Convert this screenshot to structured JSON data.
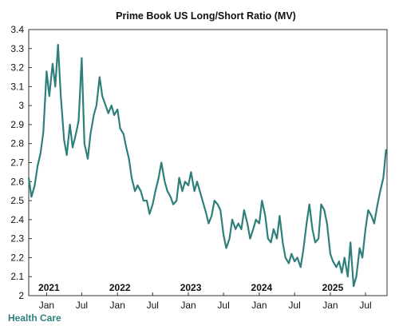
{
  "chart_data": {
    "type": "line",
    "title": "Prime Book US Long/Short Ratio (MV)",
    "footer_label": "Health Care",
    "ylim": [
      2.0,
      3.4
    ],
    "y_ticks": [
      2,
      2.1,
      2.2,
      2.3,
      2.4,
      2.5,
      2.6,
      2.7,
      2.8,
      2.9,
      3,
      3.1,
      3.2,
      3.3,
      3.4
    ],
    "x_range": [
      "2020-10-01",
      "2025-10-20"
    ],
    "x_ticks": [
      {
        "label": "Jan",
        "date": "2021-01-01"
      },
      {
        "label": "Jul",
        "date": "2021-07-01"
      },
      {
        "label": "Jan",
        "date": "2022-01-01"
      },
      {
        "label": "Jul",
        "date": "2022-07-01"
      },
      {
        "label": "Jan",
        "date": "2023-01-01"
      },
      {
        "label": "Jul",
        "date": "2023-07-01"
      },
      {
        "label": "Jan",
        "date": "2024-01-01"
      },
      {
        "label": "Jul",
        "date": "2024-07-01"
      },
      {
        "label": "Jan",
        "date": "2025-01-01"
      },
      {
        "label": "Jul",
        "date": "2025-07-01"
      }
    ],
    "year_labels": [
      {
        "label": "2021",
        "date": "2021-01-01"
      },
      {
        "label": "2022",
        "date": "2022-01-01"
      },
      {
        "label": "2023",
        "date": "2023-01-01"
      },
      {
        "label": "2024",
        "date": "2024-01-01"
      },
      {
        "label": "2025",
        "date": "2025-01-01"
      }
    ],
    "grid": false,
    "legend": "none",
    "line_color": "#2e7f7c",
    "series": [
      {
        "x": [
          "2020-10-01",
          "2020-10-15",
          "2020-11-01",
          "2020-11-15",
          "2020-12-01",
          "2020-12-15",
          "2021-01-01",
          "2021-01-15",
          "2021-02-01",
          "2021-02-15",
          "2021-03-01",
          "2021-03-15",
          "2021-04-01",
          "2021-04-15",
          "2021-05-01",
          "2021-05-15",
          "2021-06-01",
          "2021-06-15",
          "2021-07-01",
          "2021-07-15",
          "2021-08-01",
          "2021-08-15",
          "2021-09-01",
          "2021-09-15",
          "2021-10-01",
          "2021-10-15",
          "2021-11-01",
          "2021-11-15",
          "2021-12-01",
          "2021-12-15",
          "2022-01-01",
          "2022-01-15",
          "2022-02-01",
          "2022-02-15",
          "2022-03-01",
          "2022-03-15",
          "2022-04-01",
          "2022-04-15",
          "2022-05-01",
          "2022-05-15",
          "2022-06-01",
          "2022-06-15",
          "2022-07-01",
          "2022-07-15",
          "2022-08-01",
          "2022-08-15",
          "2022-09-01",
          "2022-09-15",
          "2022-10-01",
          "2022-10-15",
          "2022-11-01",
          "2022-11-15",
          "2022-12-01",
          "2022-12-15",
          "2023-01-01",
          "2023-01-15",
          "2023-02-01",
          "2023-02-15",
          "2023-03-01",
          "2023-03-15",
          "2023-04-01",
          "2023-04-15",
          "2023-05-01",
          "2023-05-15",
          "2023-06-01",
          "2023-06-15",
          "2023-07-01",
          "2023-07-15",
          "2023-08-01",
          "2023-08-15",
          "2023-09-01",
          "2023-09-15",
          "2023-10-01",
          "2023-10-15",
          "2023-11-01",
          "2023-11-15",
          "2023-12-01",
          "2023-12-15",
          "2024-01-01",
          "2024-01-15",
          "2024-02-01",
          "2024-02-15",
          "2024-03-01",
          "2024-03-15",
          "2024-04-01",
          "2024-04-15",
          "2024-05-01",
          "2024-05-15",
          "2024-06-01",
          "2024-06-15",
          "2024-07-01",
          "2024-07-15",
          "2024-08-01",
          "2024-08-15",
          "2024-09-01",
          "2024-09-15",
          "2024-10-01",
          "2024-10-15",
          "2024-11-01",
          "2024-11-15",
          "2024-12-01",
          "2024-12-15",
          "2025-01-01",
          "2025-01-15",
          "2025-02-01",
          "2025-02-15",
          "2025-03-01",
          "2025-03-15",
          "2025-04-01",
          "2025-04-15",
          "2025-05-01",
          "2025-05-15",
          "2025-06-01",
          "2025-06-15",
          "2025-07-01",
          "2025-07-15",
          "2025-08-01",
          "2025-08-15",
          "2025-09-01",
          "2025-09-15",
          "2025-10-01",
          "2025-10-15"
        ],
        "y": [
          2.62,
          2.52,
          2.58,
          2.68,
          2.75,
          2.86,
          3.18,
          3.05,
          3.22,
          3.1,
          3.32,
          3.05,
          2.82,
          2.74,
          2.9,
          2.78,
          2.85,
          2.92,
          3.25,
          2.8,
          2.72,
          2.85,
          2.95,
          3.0,
          3.15,
          3.05,
          3.0,
          2.96,
          3.0,
          2.95,
          2.98,
          2.88,
          2.85,
          2.78,
          2.72,
          2.62,
          2.55,
          2.58,
          2.55,
          2.5,
          2.5,
          2.43,
          2.48,
          2.55,
          2.62,
          2.7,
          2.6,
          2.55,
          2.52,
          2.48,
          2.5,
          2.62,
          2.55,
          2.6,
          2.58,
          2.65,
          2.55,
          2.6,
          2.55,
          2.5,
          2.44,
          2.38,
          2.42,
          2.5,
          2.48,
          2.45,
          2.32,
          2.25,
          2.3,
          2.4,
          2.35,
          2.38,
          2.35,
          2.45,
          2.38,
          2.3,
          2.35,
          2.4,
          2.38,
          2.5,
          2.42,
          2.3,
          2.28,
          2.35,
          2.3,
          2.42,
          2.28,
          2.2,
          2.17,
          2.22,
          2.18,
          2.2,
          2.15,
          2.24,
          2.38,
          2.48,
          2.35,
          2.28,
          2.3,
          2.48,
          2.45,
          2.38,
          2.22,
          2.18,
          2.15,
          2.18,
          2.12,
          2.2,
          2.1,
          2.28,
          2.05,
          2.1,
          2.25,
          2.2,
          2.35,
          2.45,
          2.42,
          2.38,
          2.48,
          2.55,
          2.62,
          2.77
        ]
      }
    ]
  }
}
